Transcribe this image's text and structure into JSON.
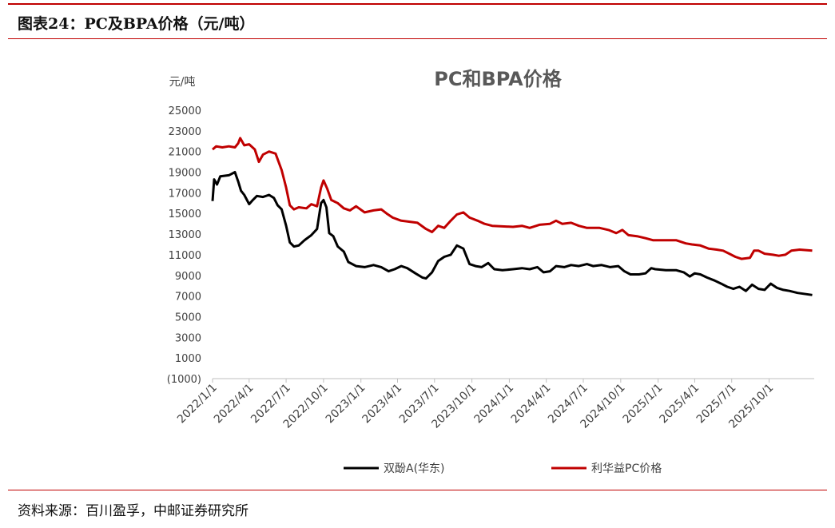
{
  "figure": {
    "title": "图表24：PC及BPA价格（元/吨）",
    "source": "资料来源：百川盈孚，中邮证券研究所"
  },
  "chart_data": {
    "type": "line",
    "title": "PC和BPA价格",
    "ylabel": "元/吨",
    "ylim": [
      -1000,
      25000
    ],
    "yticks": [
      -1000,
      1000,
      3000,
      5000,
      7000,
      9000,
      11000,
      13000,
      15000,
      17000,
      19000,
      21000,
      23000,
      25000
    ],
    "ytick_labels": [
      "(1000)",
      "1000",
      "3000",
      "5000",
      "7000",
      "9000",
      "11000",
      "13000",
      "15000",
      "17000",
      "19000",
      "21000",
      "23000",
      "25000"
    ],
    "xlim": [
      "2022-01-01",
      "2026-01-20"
    ],
    "xticks": [
      "2022-01-01",
      "2022-04-01",
      "2022-07-01",
      "2022-10-01",
      "2023-01-01",
      "2023-04-01",
      "2023-07-01",
      "2023-10-01",
      "2024-01-01",
      "2024-04-01",
      "2024-07-01",
      "2024-10-01",
      "2025-01-01",
      "2025-04-01",
      "2025-07-01",
      "2025-10-01"
    ],
    "xtick_labels": [
      "2022/1/1",
      "2022/4/1",
      "2022/7/1",
      "2022/10/1",
      "2023/1/1",
      "2023/4/1",
      "2023/7/1",
      "2023/10/1",
      "2024/1/1",
      "2024/4/1",
      "2024/7/1",
      "2024/10/1",
      "2025/1/1",
      "2025/4/1",
      "2025/7/1",
      "2025/10/1"
    ],
    "grid": false,
    "legend": "bottom",
    "series": [
      {
        "name": "双酚A(华东)",
        "color": "#000000",
        "points": [
          [
            "2022-01-01",
            16200
          ],
          [
            "2022-01-05",
            18300
          ],
          [
            "2022-01-12",
            17800
          ],
          [
            "2022-01-20",
            18600
          ],
          [
            "2022-02-10",
            18700
          ],
          [
            "2022-02-25",
            19000
          ],
          [
            "2022-03-05",
            18100
          ],
          [
            "2022-03-12",
            17200
          ],
          [
            "2022-03-20",
            16800
          ],
          [
            "2022-04-01",
            15900
          ],
          [
            "2022-04-10",
            16300
          ],
          [
            "2022-04-20",
            16700
          ],
          [
            "2022-05-05",
            16600
          ],
          [
            "2022-05-20",
            16800
          ],
          [
            "2022-06-01",
            16500
          ],
          [
            "2022-06-10",
            15800
          ],
          [
            "2022-06-20",
            15400
          ],
          [
            "2022-07-01",
            13800
          ],
          [
            "2022-07-10",
            12200
          ],
          [
            "2022-07-20",
            11800
          ],
          [
            "2022-08-01",
            11900
          ],
          [
            "2022-08-15",
            12400
          ],
          [
            "2022-09-01",
            12900
          ],
          [
            "2022-09-15",
            13500
          ],
          [
            "2022-09-25",
            16000
          ],
          [
            "2022-10-01",
            16300
          ],
          [
            "2022-10-08",
            15600
          ],
          [
            "2022-10-15",
            13100
          ],
          [
            "2022-10-25",
            12800
          ],
          [
            "2022-11-05",
            11800
          ],
          [
            "2022-11-20",
            11300
          ],
          [
            "2022-12-01",
            10300
          ],
          [
            "2022-12-20",
            9900
          ],
          [
            "2023-01-10",
            9800
          ],
          [
            "2023-02-01",
            10000
          ],
          [
            "2023-02-20",
            9800
          ],
          [
            "2023-03-10",
            9400
          ],
          [
            "2023-03-25",
            9600
          ],
          [
            "2023-04-10",
            9900
          ],
          [
            "2023-04-25",
            9700
          ],
          [
            "2023-05-15",
            9200
          ],
          [
            "2023-06-01",
            8800
          ],
          [
            "2023-06-10",
            8700
          ],
          [
            "2023-06-25",
            9300
          ],
          [
            "2023-07-10",
            10400
          ],
          [
            "2023-07-25",
            10800
          ],
          [
            "2023-08-10",
            11000
          ],
          [
            "2023-08-25",
            11900
          ],
          [
            "2023-09-10",
            11600
          ],
          [
            "2023-09-25",
            10100
          ],
          [
            "2023-10-10",
            9900
          ],
          [
            "2023-10-25",
            9800
          ],
          [
            "2023-11-10",
            10200
          ],
          [
            "2023-11-25",
            9600
          ],
          [
            "2023-12-15",
            9500
          ],
          [
            "2024-01-10",
            9600
          ],
          [
            "2024-02-01",
            9700
          ],
          [
            "2024-02-20",
            9600
          ],
          [
            "2024-03-10",
            9800
          ],
          [
            "2024-03-25",
            9300
          ],
          [
            "2024-04-10",
            9400
          ],
          [
            "2024-04-25",
            9900
          ],
          [
            "2024-05-15",
            9800
          ],
          [
            "2024-06-01",
            10000
          ],
          [
            "2024-06-20",
            9900
          ],
          [
            "2024-07-10",
            10100
          ],
          [
            "2024-07-25",
            9900
          ],
          [
            "2024-08-15",
            10000
          ],
          [
            "2024-09-05",
            9800
          ],
          [
            "2024-09-25",
            9900
          ],
          [
            "2024-10-10",
            9400
          ],
          [
            "2024-10-25",
            9100
          ],
          [
            "2024-11-15",
            9100
          ],
          [
            "2024-12-01",
            9200
          ],
          [
            "2024-12-15",
            9700
          ],
          [
            "2024-12-25",
            9600
          ],
          [
            "2025-01-20",
            9500
          ],
          [
            "2025-02-15",
            9500
          ],
          [
            "2025-03-05",
            9300
          ],
          [
            "2025-03-20",
            8900
          ],
          [
            "2025-04-01",
            9200
          ],
          [
            "2025-04-15",
            9100
          ],
          [
            "2025-05-01",
            8800
          ],
          [
            "2025-05-20",
            8500
          ],
          [
            "2025-06-05",
            8200
          ],
          [
            "2025-06-20",
            7900
          ],
          [
            "2025-07-05",
            7700
          ],
          [
            "2025-07-20",
            7900
          ],
          [
            "2025-08-05",
            7500
          ],
          [
            "2025-08-20",
            8100
          ],
          [
            "2025-09-05",
            7700
          ],
          [
            "2025-09-20",
            7600
          ],
          [
            "2025-10-05",
            8200
          ],
          [
            "2025-10-20",
            7800
          ],
          [
            "2025-11-05",
            7600
          ],
          [
            "2025-11-20",
            7500
          ],
          [
            "2025-12-10",
            7300
          ],
          [
            "2026-01-15",
            7100
          ]
        ]
      },
      {
        "name": "利华益PC价格",
        "color": "#c00000",
        "points": [
          [
            "2022-01-01",
            21200
          ],
          [
            "2022-01-10",
            21500
          ],
          [
            "2022-01-25",
            21400
          ],
          [
            "2022-02-10",
            21500
          ],
          [
            "2022-02-25",
            21400
          ],
          [
            "2022-03-05",
            21800
          ],
          [
            "2022-03-10",
            22300
          ],
          [
            "2022-03-20",
            21600
          ],
          [
            "2022-04-01",
            21700
          ],
          [
            "2022-04-15",
            21200
          ],
          [
            "2022-04-25",
            20000
          ],
          [
            "2022-05-05",
            20700
          ],
          [
            "2022-05-20",
            21000
          ],
          [
            "2022-06-05",
            20800
          ],
          [
            "2022-06-20",
            19200
          ],
          [
            "2022-07-01",
            17500
          ],
          [
            "2022-07-10",
            15800
          ],
          [
            "2022-07-20",
            15400
          ],
          [
            "2022-08-01",
            15600
          ],
          [
            "2022-08-20",
            15500
          ],
          [
            "2022-09-01",
            15900
          ],
          [
            "2022-09-15",
            15700
          ],
          [
            "2022-09-25",
            17500
          ],
          [
            "2022-10-01",
            18200
          ],
          [
            "2022-10-10",
            17400
          ],
          [
            "2022-10-20",
            16300
          ],
          [
            "2022-11-05",
            16000
          ],
          [
            "2022-11-20",
            15500
          ],
          [
            "2022-12-05",
            15300
          ],
          [
            "2022-12-20",
            15700
          ],
          [
            "2023-01-10",
            15100
          ],
          [
            "2023-02-01",
            15300
          ],
          [
            "2023-02-20",
            15400
          ],
          [
            "2023-03-05",
            15000
          ],
          [
            "2023-03-20",
            14600
          ],
          [
            "2023-04-10",
            14300
          ],
          [
            "2023-05-01",
            14200
          ],
          [
            "2023-05-20",
            14100
          ],
          [
            "2023-06-10",
            13500
          ],
          [
            "2023-06-25",
            13200
          ],
          [
            "2023-07-10",
            13800
          ],
          [
            "2023-07-25",
            13600
          ],
          [
            "2023-08-10",
            14300
          ],
          [
            "2023-08-25",
            14900
          ],
          [
            "2023-09-10",
            15100
          ],
          [
            "2023-09-25",
            14600
          ],
          [
            "2023-10-15",
            14300
          ],
          [
            "2023-11-01",
            14000
          ],
          [
            "2023-11-20",
            13800
          ],
          [
            "2024-01-10",
            13700
          ],
          [
            "2024-02-01",
            13800
          ],
          [
            "2024-02-20",
            13600
          ],
          [
            "2024-03-15",
            13900
          ],
          [
            "2024-04-10",
            14000
          ],
          [
            "2024-04-25",
            14300
          ],
          [
            "2024-05-10",
            14000
          ],
          [
            "2024-06-01",
            14100
          ],
          [
            "2024-06-20",
            13800
          ],
          [
            "2024-07-10",
            13600
          ],
          [
            "2024-08-10",
            13600
          ],
          [
            "2024-09-01",
            13400
          ],
          [
            "2024-09-20",
            13100
          ],
          [
            "2024-10-05",
            13400
          ],
          [
            "2024-10-20",
            12900
          ],
          [
            "2024-11-10",
            12800
          ],
          [
            "2024-12-01",
            12600
          ],
          [
            "2024-12-20",
            12400
          ],
          [
            "2025-01-20",
            12400
          ],
          [
            "2025-02-15",
            12400
          ],
          [
            "2025-03-10",
            12100
          ],
          [
            "2025-03-25",
            12000
          ],
          [
            "2025-04-15",
            11900
          ],
          [
            "2025-05-05",
            11600
          ],
          [
            "2025-05-25",
            11500
          ],
          [
            "2025-06-10",
            11400
          ],
          [
            "2025-06-25",
            11100
          ],
          [
            "2025-07-10",
            10800
          ],
          [
            "2025-07-25",
            10600
          ],
          [
            "2025-08-15",
            10700
          ],
          [
            "2025-08-25",
            11400
          ],
          [
            "2025-09-05",
            11400
          ],
          [
            "2025-09-20",
            11100
          ],
          [
            "2025-10-10",
            11000
          ],
          [
            "2025-10-25",
            10900
          ],
          [
            "2025-11-10",
            11000
          ],
          [
            "2025-11-25",
            11400
          ],
          [
            "2025-12-15",
            11500
          ],
          [
            "2026-01-15",
            11400
          ]
        ]
      }
    ]
  }
}
